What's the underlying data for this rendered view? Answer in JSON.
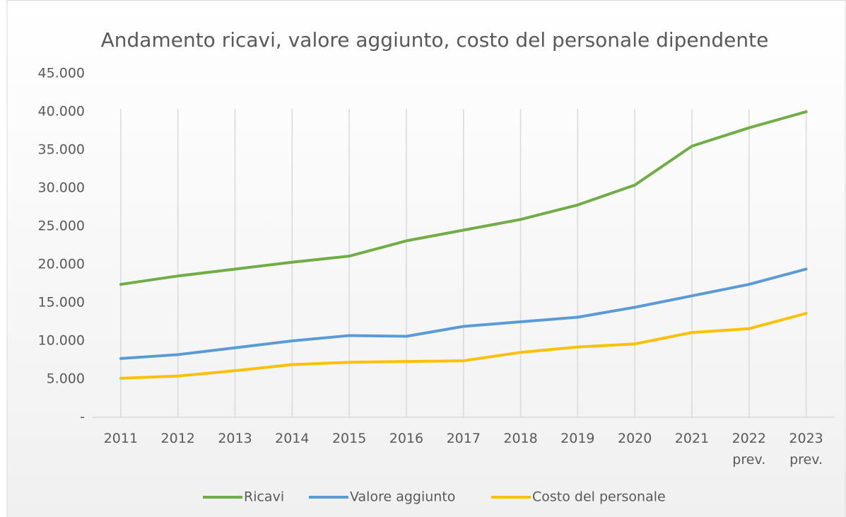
{
  "chart_data": {
    "type": "line",
    "title": "Andamento ricavi, valore aggiunto, costo del personale dipendente",
    "categories": [
      "2011",
      "2012",
      "2013",
      "2014",
      "2015",
      "2016",
      "2017",
      "2018",
      "2019",
      "2020",
      "2021",
      "2022 prev.",
      "2023 prev."
    ],
    "series": [
      {
        "name": "Ricavi",
        "color": "#70ad47",
        "values": [
          17400,
          18500,
          19400,
          20300,
          21100,
          23100,
          24500,
          25900,
          27800,
          30400,
          35500,
          37900,
          40000
        ]
      },
      {
        "name": "Valore aggiunto",
        "color": "#5b9bd5",
        "values": [
          7700,
          8200,
          9100,
          10000,
          10700,
          10600,
          11900,
          12500,
          13100,
          14400,
          15900,
          17400,
          19400
        ]
      },
      {
        "name": "Costo del personale",
        "color": "#ffc000",
        "values": [
          5100,
          5400,
          6100,
          6900,
          7200,
          7300,
          7400,
          8500,
          9200,
          9600,
          11100,
          11600,
          13600
        ]
      }
    ],
    "ylim": [
      0,
      45000
    ],
    "yticks": [
      {
        "value": 0,
        "label": "-"
      },
      {
        "value": 5000,
        "label": "5.000"
      },
      {
        "value": 10000,
        "label": "10.000"
      },
      {
        "value": 15000,
        "label": "15.000"
      },
      {
        "value": 20000,
        "label": "20.000"
      },
      {
        "value": 25000,
        "label": "25.000"
      },
      {
        "value": 30000,
        "label": "30.000"
      },
      {
        "value": 35000,
        "label": "35.000"
      },
      {
        "value": 40000,
        "label": "40.000"
      },
      {
        "value": 45000,
        "label": "45.000"
      }
    ],
    "grid": "vertical",
    "legend": "bottom"
  }
}
